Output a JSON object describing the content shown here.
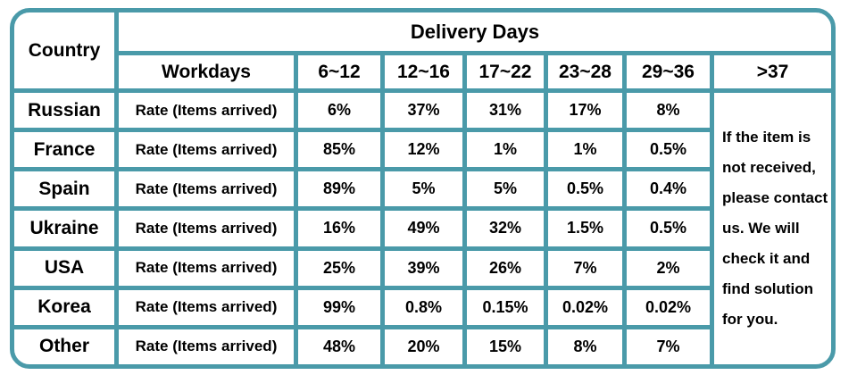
{
  "chart_data": {
    "type": "table",
    "title": "Delivery Days",
    "country_header": "Country",
    "workdays_header": "Workdays",
    "day_range_columns": [
      "6~12",
      "12~16",
      "17~22",
      "23~28",
      "29~36",
      ">37"
    ],
    "rows": [
      {
        "country": "Russian",
        "rate_label": "Rate (Items arrived)",
        "values": [
          "6%",
          "37%",
          "31%",
          "17%",
          "8%"
        ]
      },
      {
        "country": "France",
        "rate_label": "Rate (Items arrived)",
        "values": [
          "85%",
          "12%",
          "1%",
          "1%",
          "0.5%"
        ]
      },
      {
        "country": "Spain",
        "rate_label": "Rate (Items arrived)",
        "values": [
          "89%",
          "5%",
          "5%",
          "0.5%",
          "0.4%"
        ]
      },
      {
        "country": "Ukraine",
        "rate_label": "Rate (Items arrived)",
        "values": [
          "16%",
          "49%",
          "32%",
          "1.5%",
          "0.5%"
        ]
      },
      {
        "country": "USA",
        "rate_label": "Rate (Items arrived)",
        "values": [
          "25%",
          "39%",
          "26%",
          "7%",
          "2%"
        ]
      },
      {
        "country": "Korea",
        "rate_label": "Rate (Items arrived)",
        "values": [
          "99%",
          "0.8%",
          "0.15%",
          "0.02%",
          "0.02%"
        ]
      },
      {
        "country": "Other",
        "rate_label": "Rate (Items arrived)",
        "values": [
          "48%",
          "20%",
          "15%",
          "8%",
          "7%"
        ]
      }
    ],
    "note_text": "If the item is not received, please contact us. We will check it and find solution for you.",
    "note_lines": [
      "If the item is",
      "not received,",
      "please contact",
      "us. We will",
      "check it and",
      "find solution",
      "for you."
    ],
    "colors": {
      "border_teal": "#4a9aa9",
      "text": "#000000",
      "background": "#ffffff"
    }
  }
}
